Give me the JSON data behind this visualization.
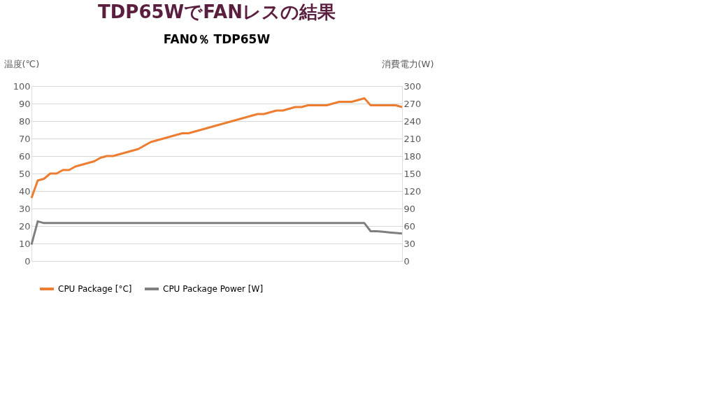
{
  "chart_data": {
    "type": "line",
    "title": "TDP65WでFANレスの結果",
    "subtitle": "FAN0％ TDP65W",
    "ylabel": "温度(℃)",
    "y2label": "消費電力(W)",
    "categories": [
      null,
      null,
      null,
      null,
      null,
      null,
      null,
      null,
      null,
      null,
      null,
      null,
      null,
      null,
      null,
      null,
      null,
      null,
      null,
      null,
      null,
      null,
      null,
      null,
      null,
      null,
      null,
      null,
      null,
      null,
      null,
      null,
      null,
      null,
      null,
      null,
      null,
      null,
      null,
      null,
      null,
      null,
      null,
      null,
      null,
      null,
      null,
      null,
      null,
      null,
      null,
      null,
      null,
      null,
      null,
      null,
      null,
      null,
      null,
      null
    ],
    "series": [
      {
        "name": "CPU Package [°C]",
        "color": "#ed7d31",
        "values": [
          36,
          46,
          47,
          50,
          50,
          52,
          52,
          54,
          55,
          56,
          57,
          59,
          60,
          60,
          61,
          62,
          63,
          64,
          66,
          68,
          69,
          70,
          71,
          72,
          73,
          73,
          74,
          75,
          76,
          77,
          78,
          79,
          80,
          81,
          82,
          83,
          84,
          84,
          85,
          86,
          86,
          87,
          88,
          88,
          89,
          89,
          89,
          89,
          90,
          91,
          91,
          91,
          92,
          93,
          89,
          89,
          89,
          89,
          89,
          88
        ]
      },
      {
        "name": "CPU Package Power [W]",
        "color": "#7f7f7f",
        "axis": "y2",
        "values": [
          28,
          68,
          65,
          65,
          65,
          65,
          65,
          65,
          65,
          65,
          65,
          65,
          65,
          65,
          65,
          65,
          65,
          65,
          65,
          65,
          65,
          65,
          65,
          65,
          65,
          65,
          65,
          65,
          65,
          65,
          65,
          65,
          65,
          65,
          65,
          65,
          65,
          65,
          65,
          65,
          65,
          65,
          65,
          65,
          65,
          65,
          65,
          65,
          65,
          65,
          65,
          65,
          65,
          65,
          51,
          51,
          50,
          49,
          48,
          47
        ]
      }
    ],
    "ylim": [
      0,
      100
    ],
    "yticks": [
      0,
      10,
      20,
      30,
      40,
      50,
      60,
      70,
      80,
      90,
      100
    ],
    "y2lim": [
      0,
      300
    ],
    "y2ticks": [
      0,
      30,
      60,
      90,
      120,
      150,
      180,
      210,
      240,
      270,
      300
    ],
    "grid": "y",
    "legend": "bottom"
  }
}
